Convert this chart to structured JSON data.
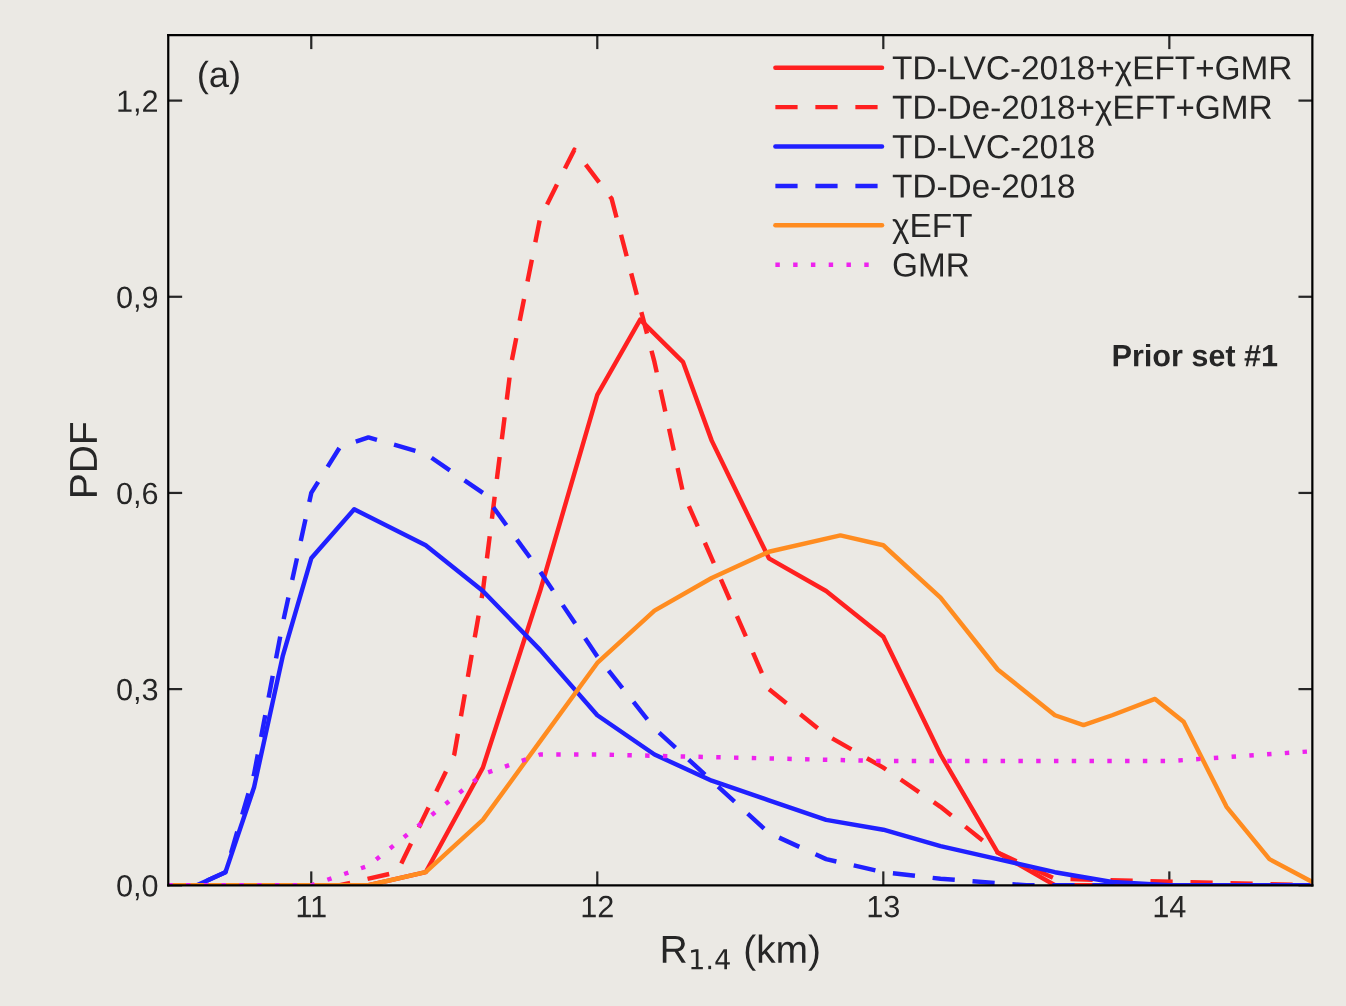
{
  "chart_data": {
    "type": "line",
    "xlabel": "R$_{1.4}$ (km)",
    "ylabel": "PDF",
    "xlim": [
      10.5,
      14.5
    ],
    "ylim": [
      0,
      1.3
    ],
    "xticks": [
      11,
      12,
      13,
      14
    ],
    "yticks": [
      {
        "value": 0,
        "label": "0,0"
      },
      {
        "value": 0.3,
        "label": "0,3"
      },
      {
        "value": 0.6,
        "label": "0,6"
      },
      {
        "value": 0.9,
        "label": "0,9"
      },
      {
        "value": 1.2,
        "label": "1,2"
      }
    ],
    "grid": false,
    "legend": "top right",
    "annotations": [
      "(a)",
      "Prior set #1"
    ],
    "series": [
      {
        "name": "TD-LVC-2018+χEFT+GMR",
        "color": "#ff2020",
        "line_style": "solid",
        "x": [
          10.5,
          11.2,
          11.4,
          11.6,
          11.8,
          12.0,
          12.15,
          12.3,
          12.4,
          12.6,
          12.8,
          13.0,
          13.2,
          13.4,
          13.6,
          14.5
        ],
        "values": [
          0,
          0,
          0.02,
          0.18,
          0.45,
          0.75,
          0.865,
          0.8,
          0.68,
          0.5,
          0.45,
          0.38,
          0.2,
          0.05,
          0,
          0
        ]
      },
      {
        "name": "TD-De-2018+χEFT+GMR",
        "color": "#ff2020",
        "line_style": "dashed",
        "x": [
          10.5,
          11.1,
          11.3,
          11.5,
          11.6,
          11.7,
          11.8,
          11.92,
          12.05,
          12.2,
          12.3,
          12.4,
          12.6,
          12.8,
          13.0,
          13.2,
          13.4,
          13.6,
          14.5
        ],
        "values": [
          0,
          0,
          0.02,
          0.2,
          0.45,
          0.8,
          1.02,
          1.125,
          1.05,
          0.8,
          0.6,
          0.5,
          0.3,
          0.23,
          0.18,
          0.12,
          0.05,
          0.01,
          0
        ]
      },
      {
        "name": "TD-LVC-2018",
        "color": "#2020ff",
        "line_style": "solid",
        "x": [
          10.5,
          10.6,
          10.7,
          10.8,
          10.9,
          11.0,
          11.15,
          11.4,
          11.6,
          11.8,
          12.0,
          12.2,
          12.4,
          12.6,
          12.8,
          13.0,
          13.2,
          13.4,
          13.6,
          13.8,
          14.0,
          14.5
        ],
        "values": [
          0,
          0,
          0.02,
          0.15,
          0.35,
          0.5,
          0.575,
          0.52,
          0.45,
          0.36,
          0.26,
          0.2,
          0.16,
          0.13,
          0.1,
          0.085,
          0.06,
          0.04,
          0.02,
          0.005,
          0,
          0
        ]
      },
      {
        "name": "TD-De-2018",
        "color": "#2020ff",
        "line_style": "dashed",
        "x": [
          10.5,
          10.6,
          10.7,
          10.8,
          10.9,
          11.0,
          11.1,
          11.2,
          11.4,
          11.6,
          11.8,
          12.0,
          12.2,
          12.4,
          12.6,
          12.8,
          13.0,
          13.2,
          13.5,
          14.5
        ],
        "values": [
          0,
          0,
          0.02,
          0.17,
          0.4,
          0.6,
          0.67,
          0.685,
          0.66,
          0.6,
          0.48,
          0.35,
          0.24,
          0.16,
          0.08,
          0.04,
          0.02,
          0.01,
          0,
          0
        ]
      },
      {
        "name": "χEFT",
        "color": "#ff8c20",
        "line_style": "solid",
        "x": [
          10.5,
          11.2,
          11.4,
          11.6,
          11.8,
          12.0,
          12.2,
          12.4,
          12.6,
          12.85,
          13.0,
          13.2,
          13.4,
          13.6,
          13.7,
          13.8,
          13.95,
          14.05,
          14.2,
          14.35,
          14.5
        ],
        "values": [
          0,
          0,
          0.02,
          0.1,
          0.22,
          0.34,
          0.42,
          0.47,
          0.51,
          0.535,
          0.52,
          0.44,
          0.33,
          0.26,
          0.245,
          0.26,
          0.285,
          0.25,
          0.12,
          0.04,
          0.005
        ]
      },
      {
        "name": "GMR",
        "color": "#ee22ee",
        "line_style": "dotted",
        "x": [
          10.5,
          11.0,
          11.2,
          11.4,
          11.6,
          11.8,
          12.0,
          12.5,
          13.0,
          13.5,
          14.0,
          14.5
        ],
        "values": [
          0,
          0,
          0.03,
          0.1,
          0.17,
          0.2,
          0.2,
          0.195,
          0.19,
          0.19,
          0.19,
          0.205
        ]
      }
    ]
  }
}
